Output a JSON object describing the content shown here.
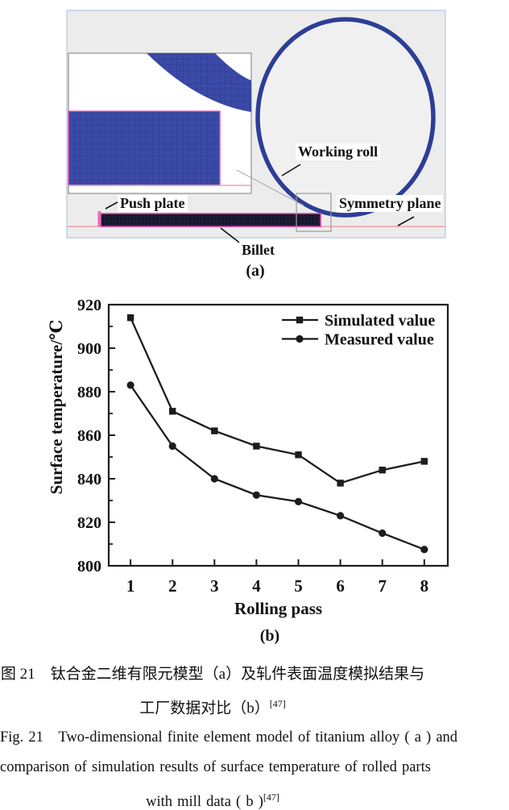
{
  "figure_labels": {
    "working_roll": "Working roll",
    "push_plate": "Push plate",
    "symmetry_plane": "Symmetry plane",
    "billet": "Billet",
    "tag_a": "(a)",
    "tag_b": "(b)"
  },
  "chart_data": {
    "type": "line",
    "title": "",
    "xlabel": "Rolling pass",
    "ylabel": "Surface temperature/℃",
    "x": [
      1,
      2,
      3,
      4,
      5,
      6,
      7,
      8
    ],
    "xlim": [
      0.48,
      8.56
    ],
    "ylim": [
      800,
      920
    ],
    "yticks": [
      800,
      820,
      840,
      860,
      880,
      900,
      920
    ],
    "y_minor_step": 10,
    "grid": false,
    "legend_position": "top-right",
    "series": [
      {
        "name": "Simulated value",
        "marker": "square",
        "values": [
          914,
          871,
          862,
          855,
          851,
          838,
          844,
          848
        ]
      },
      {
        "name": "Measured value",
        "marker": "circle",
        "values": [
          883,
          855,
          840,
          832.5,
          829.5,
          823,
          815,
          807.5
        ]
      }
    ]
  },
  "caption": {
    "zh_line1": "图 21　钛合金二维有限元模型（a）及轧件表面温度模拟结果与",
    "zh_line2": "工厂数据对比（b）",
    "zh_line2_sup": "[47]",
    "en_line1": "Fig. 21　Two-dimensional finite element model of titanium alloy ( a ) and",
    "en_line2": "comparison of simulation results of surface temperature of rolled parts",
    "en_line3": "with mill data ( b )",
    "en_line3_sup": "[47]"
  },
  "colors": {
    "roll_blue": "#2c3e96",
    "mesh_blue": "#3b4aa6",
    "billet_dark": "#17182f",
    "magenta": "#e050ae",
    "pink_line": "#f2a2a6",
    "panel_bg": "#ececec",
    "ink": "#1c1c1c"
  }
}
